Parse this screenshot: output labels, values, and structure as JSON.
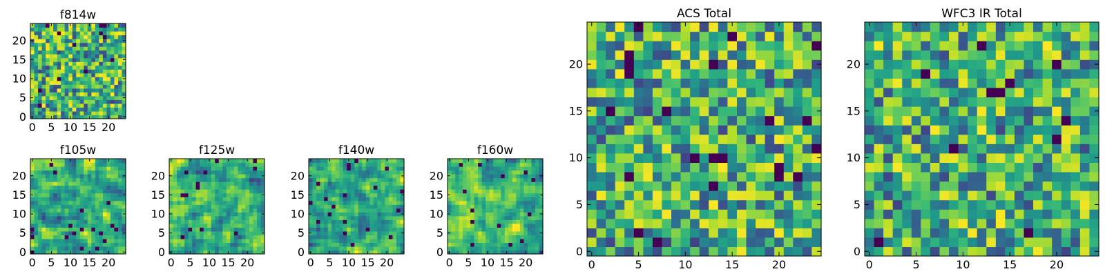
{
  "chart_data": [
    {
      "type": "heatmap",
      "title": "f814w",
      "xlabel": "",
      "ylabel": "",
      "xlim": [
        0,
        25
      ],
      "ylim": [
        0,
        25
      ],
      "xticks": [
        "0",
        "5",
        "10",
        "15",
        "20"
      ],
      "yticks": [
        "0",
        "5",
        "10",
        "15",
        "20"
      ],
      "grid": false,
      "colormap": "viridis",
      "grid_size": 25,
      "seed": 11,
      "texture": "fine"
    },
    {
      "type": "heatmap",
      "title": "f105w",
      "xlabel": "",
      "ylabel": "",
      "xlim": [
        0,
        25
      ],
      "ylim": [
        0,
        25
      ],
      "xticks": [
        "0",
        "5",
        "10",
        "15",
        "20"
      ],
      "yticks": [
        "0",
        "5",
        "10",
        "15",
        "20"
      ],
      "grid": false,
      "colormap": "viridis",
      "grid_size": 25,
      "seed": 23,
      "texture": "smooth"
    },
    {
      "type": "heatmap",
      "title": "f125w",
      "xlabel": "",
      "ylabel": "",
      "xlim": [
        0,
        25
      ],
      "ylim": [
        0,
        25
      ],
      "xticks": [
        "0",
        "5",
        "10",
        "15",
        "20"
      ],
      "yticks": [
        "0",
        "5",
        "10",
        "15",
        "20"
      ],
      "grid": false,
      "colormap": "viridis",
      "grid_size": 25,
      "seed": 37,
      "texture": "smooth"
    },
    {
      "type": "heatmap",
      "title": "f140w",
      "xlabel": "",
      "ylabel": "",
      "xlim": [
        0,
        25
      ],
      "ylim": [
        0,
        25
      ],
      "xticks": [
        "0",
        "5",
        "10",
        "15",
        "20"
      ],
      "yticks": [
        "0",
        "5",
        "10",
        "15",
        "20"
      ],
      "grid": false,
      "colormap": "viridis",
      "grid_size": 25,
      "seed": 41,
      "texture": "smooth"
    },
    {
      "type": "heatmap",
      "title": "f160w",
      "xlabel": "",
      "ylabel": "",
      "xlim": [
        0,
        25
      ],
      "ylim": [
        0,
        25
      ],
      "xticks": [
        "0",
        "5",
        "10",
        "15",
        "20"
      ],
      "yticks": [
        "0",
        "5",
        "10",
        "15",
        "20"
      ],
      "grid": false,
      "colormap": "viridis",
      "grid_size": 25,
      "seed": 53,
      "texture": "smooth"
    },
    {
      "type": "heatmap",
      "title": "ACS Total",
      "xlabel": "",
      "ylabel": "",
      "xlim": [
        0,
        25
      ],
      "ylim": [
        0,
        25
      ],
      "xticks": [
        "0",
        "5",
        "10",
        "15",
        "20"
      ],
      "yticks": [
        "0",
        "5",
        "10",
        "15",
        "20"
      ],
      "grid": false,
      "colormap": "viridis",
      "grid_size": 25,
      "seed": 67,
      "texture": "fine"
    },
    {
      "type": "heatmap",
      "title": "WFC3 IR Total",
      "xlabel": "",
      "ylabel": "",
      "xlim": [
        0,
        25
      ],
      "ylim": [
        0,
        25
      ],
      "xticks": [
        "0",
        "5",
        "10",
        "15",
        "20"
      ],
      "yticks": [
        "0",
        "5",
        "10",
        "15",
        "20"
      ],
      "grid": false,
      "colormap": "viridis",
      "grid_size": 25,
      "seed": 79,
      "texture": "fine"
    }
  ]
}
